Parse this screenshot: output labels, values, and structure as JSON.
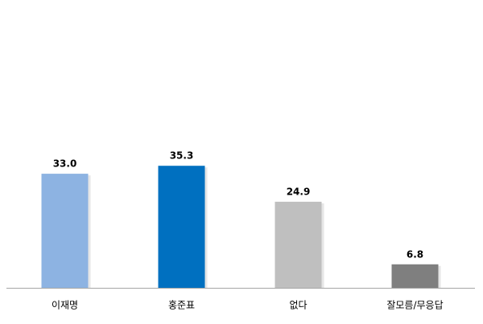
{
  "chart_data": {
    "type": "bar",
    "categories": [
      "이재명",
      "홍준표",
      "없다",
      "잘모름/무응답"
    ],
    "values": [
      33.0,
      35.3,
      24.9,
      6.8
    ],
    "value_labels": [
      "33.0",
      "35.3",
      "24.9",
      "6.8"
    ],
    "colors": [
      "#8db3e2",
      "#0070c0",
      "#bfbfbf",
      "#7f7f7f"
    ],
    "ylim": [
      0,
      80
    ]
  }
}
